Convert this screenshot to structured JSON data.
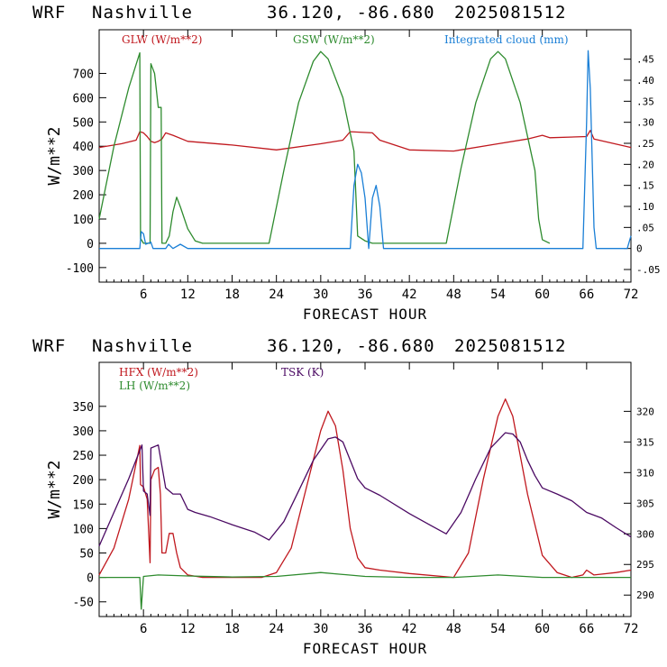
{
  "charts": [
    {
      "header": {
        "model": "WRF",
        "station": "Nashville",
        "coords": "36.120, -86.680",
        "date": "2025081512"
      },
      "legend": [
        {
          "label": "GLW (W/m**2)",
          "color": "#c0181e"
        },
        {
          "label": "GSW (W/m**2)",
          "color": "#2e8b2e"
        },
        {
          "label": "Integrated cloud (mm)",
          "color": "#1a7fd6"
        }
      ]
    },
    {
      "header": {
        "model": "WRF",
        "station": "Nashville",
        "coords": "36.120, -86.680",
        "date": "2025081512"
      },
      "legend": [
        {
          "label": "HFX (W/m**2)",
          "color": "#c0181e"
        },
        {
          "label": "LH  (W/m**2)",
          "color": "#2e8b2e"
        },
        {
          "label": "TSK (K)",
          "color": "#4b0a63"
        }
      ]
    }
  ],
  "chart_data": [
    {
      "type": "line",
      "xlabel": "FORECAST HOUR",
      "ylabel": "W/m**2",
      "xlim": [
        0,
        72
      ],
      "xticks": [
        6,
        12,
        18,
        24,
        30,
        36,
        42,
        48,
        54,
        60,
        66,
        72
      ],
      "ylim": [
        -160,
        880
      ],
      "yticks": [
        -100,
        0,
        100,
        200,
        300,
        400,
        500,
        600,
        700
      ],
      "y2lim": [
        -0.08,
        0.52
      ],
      "y2ticks": [
        "-.05",
        "0",
        ".05",
        ".10",
        ".15",
        ".20",
        ".25",
        ".30",
        ".35",
        ".40",
        ".45"
      ],
      "y2tick_values": [
        -0.05,
        0,
        0.05,
        0.1,
        0.15,
        0.2,
        0.25,
        0.3,
        0.35,
        0.4,
        0.45
      ],
      "grid": false,
      "series": [
        {
          "name": "GLW (W/m**2)",
          "color": "#c0181e",
          "axis": "left",
          "x": [
            0,
            3,
            5,
            5.5,
            6,
            6.5,
            7,
            7.5,
            8,
            8.5,
            9,
            10,
            12,
            18,
            24,
            30,
            33,
            34,
            37,
            38,
            42,
            48,
            54,
            58,
            60,
            61,
            66,
            66.5,
            67,
            72
          ],
          "y": [
            395,
            410,
            425,
            460,
            455,
            440,
            420,
            415,
            420,
            430,
            455,
            445,
            420,
            405,
            385,
            410,
            425,
            460,
            455,
            425,
            385,
            380,
            410,
            430,
            445,
            435,
            440,
            465,
            430,
            395
          ]
        },
        {
          "name": "GSW (W/m**2)",
          "color": "#2e8b2e",
          "axis": "left",
          "x": [
            0,
            2,
            4,
            5.5,
            5.6,
            6,
            6.9,
            7,
            7.5,
            8,
            8.4,
            8.5,
            9,
            9.5,
            10,
            10.5,
            11,
            12,
            13,
            14,
            23,
            25,
            27,
            29,
            30,
            31,
            33,
            34.5,
            35,
            36,
            37,
            47,
            49,
            51,
            53,
            54,
            55,
            57,
            59,
            59.5,
            60,
            61
          ],
          "y": [
            100,
            400,
            640,
            785,
            20,
            0,
            0,
            740,
            700,
            560,
            560,
            0,
            0,
            30,
            130,
            190,
            150,
            60,
            10,
            0,
            0,
            300,
            580,
            750,
            790,
            760,
            600,
            380,
            30,
            10,
            0,
            0,
            310,
            580,
            760,
            790,
            760,
            580,
            300,
            100,
            15,
            0
          ]
        },
        {
          "name": "Integrated cloud (mm)",
          "color": "#1a7fd6",
          "axis": "right",
          "x": [
            0,
            5.5,
            5.7,
            6,
            6.3,
            7,
            7.3,
            8,
            9,
            9.4,
            10,
            11,
            12,
            14,
            34,
            34.5,
            35,
            35.5,
            36,
            36.5,
            37,
            37.5,
            38,
            38.5,
            65.5,
            66,
            66.2,
            66.5,
            67,
            67.3,
            71.5,
            72
          ],
          "y": [
            0,
            0,
            0.04,
            0.035,
            0.01,
            0.015,
            0,
            0,
            0,
            0.01,
            0,
            0.01,
            0,
            0,
            0,
            0.15,
            0.2,
            0.18,
            0.12,
            0.0,
            0.12,
            0.15,
            0.1,
            0,
            0,
            0.3,
            0.47,
            0.38,
            0.05,
            0,
            0,
            0.03
          ]
        }
      ]
    },
    {
      "type": "line",
      "xlabel": "FORECAST HOUR",
      "ylabel": "W/m**2",
      "xlim": [
        0,
        72
      ],
      "xticks": [
        6,
        12,
        18,
        24,
        30,
        36,
        42,
        48,
        54,
        60,
        66,
        72
      ],
      "ylim": [
        -80,
        440
      ],
      "yticks": [
        -50,
        0,
        50,
        100,
        150,
        200,
        250,
        300,
        350
      ],
      "y2lim": [
        286.5,
        328
      ],
      "y2ticks": [
        "290",
        "295",
        "300",
        "305",
        "310",
        "315",
        "320"
      ],
      "y2tick_values": [
        290,
        295,
        300,
        305,
        310,
        315,
        320
      ],
      "grid": false,
      "series": [
        {
          "name": "HFX (W/m**2)",
          "color": "#c0181e",
          "axis": "left",
          "x": [
            0,
            2,
            4,
            5.5,
            5.6,
            6,
            6.5,
            6.9,
            7,
            7.5,
            8,
            8.3,
            8.5,
            9,
            9.5,
            10,
            10.5,
            11,
            12,
            14,
            22,
            24,
            26,
            28,
            30,
            31,
            32,
            33,
            34,
            35,
            36,
            38,
            42,
            48,
            50,
            52,
            54,
            55,
            56,
            58,
            60,
            62,
            64,
            65.5,
            66,
            67,
            70,
            72
          ],
          "y": [
            5,
            60,
            160,
            270,
            190,
            185,
            160,
            30,
            200,
            220,
            225,
            170,
            50,
            50,
            90,
            90,
            50,
            20,
            5,
            0,
            0,
            10,
            60,
            180,
            300,
            340,
            310,
            220,
            100,
            40,
            20,
            15,
            8,
            0,
            50,
            200,
            330,
            365,
            330,
            170,
            45,
            10,
            0,
            5,
            15,
            5,
            10,
            15
          ]
        },
        {
          "name": "LH  (W/m**2)",
          "color": "#2e8b2e",
          "axis": "left",
          "x": [
            0,
            5.5,
            5.7,
            6,
            8,
            12,
            18,
            24,
            30,
            36,
            42,
            48,
            54,
            60,
            66,
            72
          ],
          "y": [
            0,
            0,
            -65,
            2,
            5,
            3,
            1,
            2,
            10,
            2,
            0,
            0,
            5,
            0,
            0,
            0
          ]
        },
        {
          "name": "TSK (K)",
          "color": "#4b0a63",
          "axis": "right",
          "x": [
            0,
            2,
            4,
            5.8,
            6,
            6.5,
            6.9,
            7,
            8,
            8.5,
            9,
            10,
            11,
            12,
            13,
            15,
            18,
            21,
            23,
            25,
            27,
            29,
            31,
            32,
            33,
            34,
            35,
            36,
            38,
            42,
            45,
            47,
            49,
            51,
            53,
            55,
            56,
            57,
            58,
            59,
            60,
            62,
            64,
            66,
            68,
            70,
            72
          ],
          "y": [
            298,
            303.5,
            309,
            314.5,
            307,
            306.5,
            303,
            314,
            314.5,
            311,
            307.5,
            306.5,
            306.5,
            304,
            303.5,
            302.8,
            301.5,
            300.3,
            299,
            302,
            307,
            312,
            315.5,
            315.8,
            315,
            312,
            309,
            307.5,
            306.3,
            303.3,
            301.3,
            300,
            303.5,
            309,
            314,
            316.5,
            316.3,
            315,
            312,
            309.5,
            307.5,
            306.5,
            305.4,
            303.5,
            302.6,
            301,
            299.5
          ]
        }
      ]
    }
  ]
}
